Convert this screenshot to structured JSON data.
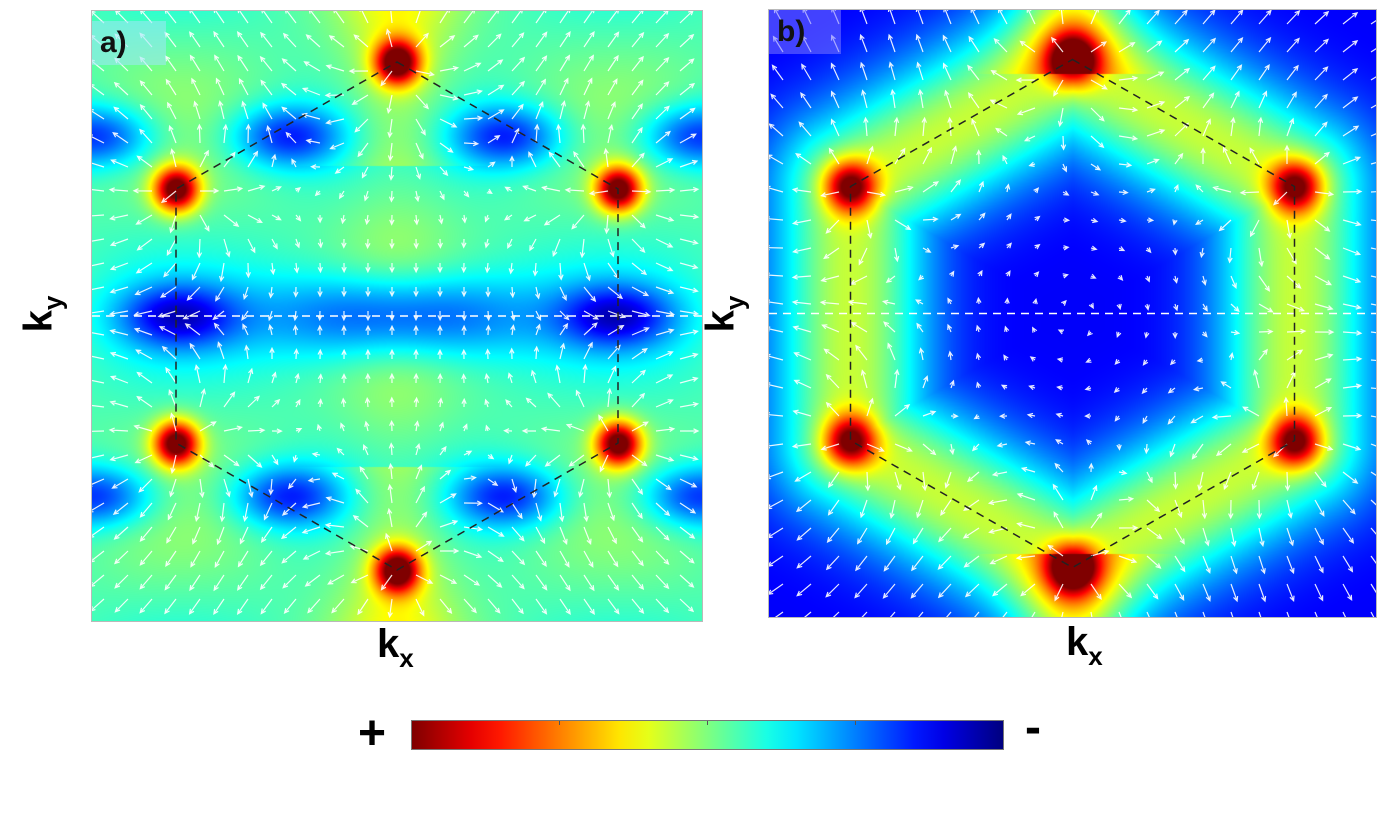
{
  "chart_data": [
    {
      "type": "heatmap",
      "panel_label": "a)",
      "xlabel": "k",
      "xlabel_sub": "x",
      "ylabel": "k",
      "ylabel_sub": "y",
      "overlay": "vector field (white arrows) with dashed black hexagonal Brillouin zone and dashed white horizontal line at k_y = 0",
      "hot_spots": "red maxima at the six hexagon corners",
      "cold_regions": "dark blue minima at center and between corners"
    },
    {
      "type": "heatmap",
      "panel_label": "b)",
      "xlabel": "k",
      "xlabel_sub": "x",
      "ylabel": "k",
      "ylabel_sub": "y",
      "overlay": "vector field (white arrows) with dashed black hexagonal Brillouin zone and dashed white horizontal line at k_y = 0",
      "hot_spots": "red maxima at the six hexagon corners joined by yellow ridges",
      "cold_regions": "dark blue hexagonal interior"
    }
  ],
  "colorbar": {
    "colormap": "jet",
    "high_label": "+",
    "low_label": "-",
    "high_color": "#800000",
    "low_color": "#000080"
  }
}
